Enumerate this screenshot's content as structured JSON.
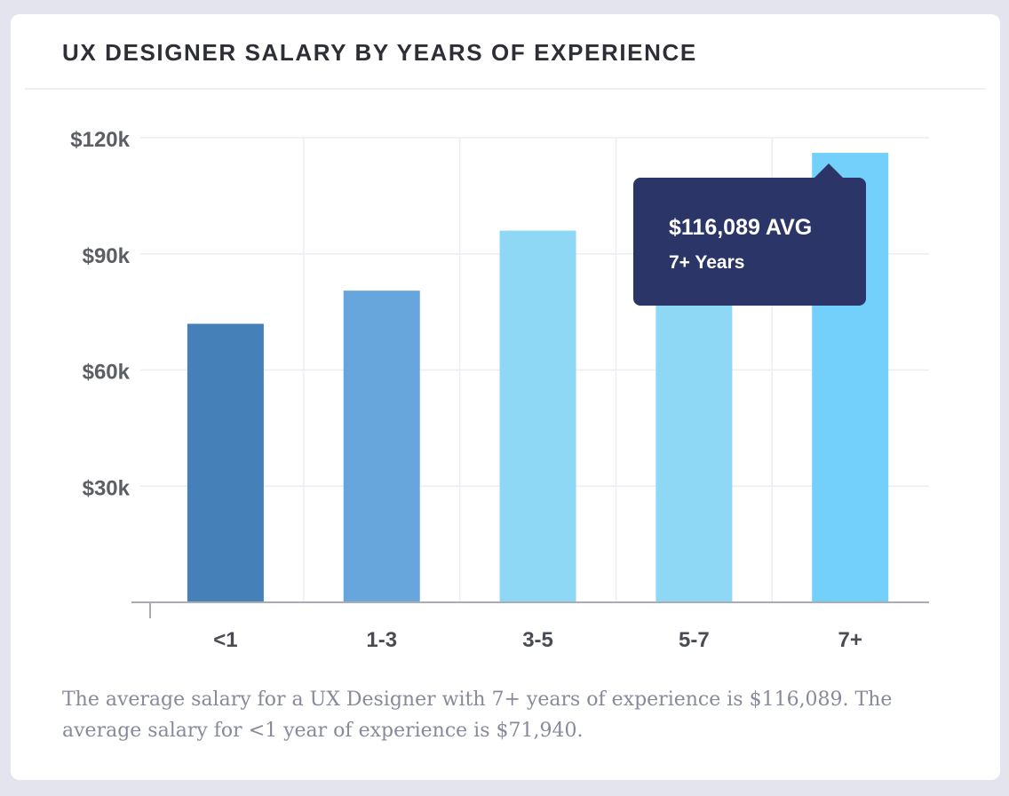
{
  "card": {
    "title": "UX DESIGNER SALARY BY YEARS OF EXPERIENCE",
    "caption": "The average salary for a UX Designer with 7+ years of experience is $116,089. The average salary for <1 year of experience is $71,940."
  },
  "tooltip": {
    "value": "$116,089 AVG",
    "label": "7+ Years"
  },
  "chart_data": {
    "type": "bar",
    "categories": [
      "<1",
      "1-3",
      "3-5",
      "5-7",
      "7+"
    ],
    "values": [
      71940,
      80500,
      96000,
      104000,
      116089
    ],
    "bar_colors": [
      "#4680b9",
      "#67a5dd",
      "#8ed8f6",
      "#8ed8f6",
      "#72d0fa"
    ],
    "yticks": [
      0,
      30000,
      60000,
      90000,
      120000
    ],
    "ytick_labels": [
      "",
      "$30k",
      "$60k",
      "$90k",
      "$120k"
    ],
    "ylim": [
      0,
      120000
    ],
    "grid": true,
    "highlighted_category": "7+"
  }
}
